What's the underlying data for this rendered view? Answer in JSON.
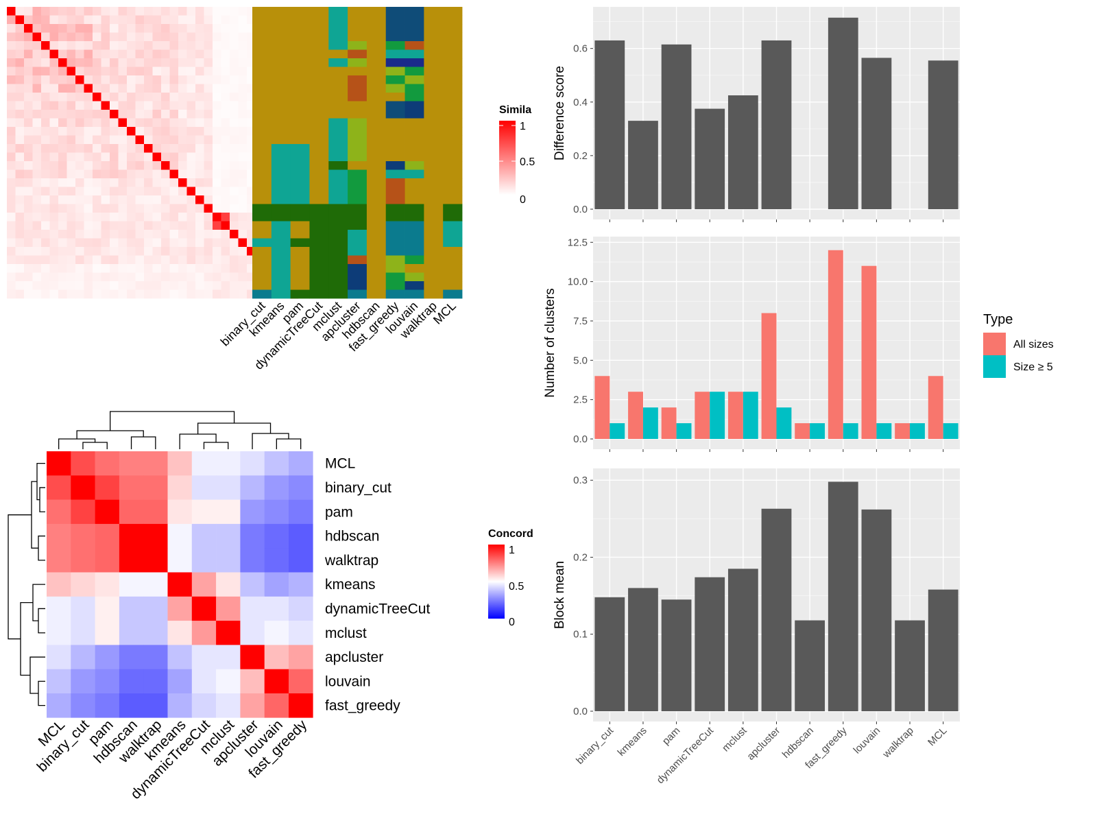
{
  "methods": [
    "binary_cut",
    "kmeans",
    "pam",
    "dynamicTreeCut",
    "mclust",
    "apcluster",
    "hdbscan",
    "fast_greedy",
    "louvain",
    "walktrap",
    "MCL"
  ],
  "ordered_methods": [
    "MCL",
    "binary_cut",
    "pam",
    "hdbscan",
    "walktrap",
    "kmeans",
    "dynamicTreeCut",
    "mclust",
    "apcluster",
    "louvain",
    "fast_greedy"
  ],
  "similarity_legend": {
    "title": "Simila",
    "ticks": [
      "1",
      "0.5",
      "0"
    ]
  },
  "concordance_legend": {
    "title": "Concord",
    "ticks": [
      "1",
      "0.5",
      "0"
    ]
  },
  "type_legend": {
    "title": "Type",
    "items": [
      "All sizes",
      "Size ≥ 5"
    ]
  },
  "colors": {
    "heat_high": "#ff0000",
    "heat_low": "#ffffff",
    "conc_low": "#0000ff",
    "panel_bg": "#ebebeb",
    "bar_gray": "#595959",
    "all_sizes": "#f8766d",
    "size5": "#00bfc4",
    "cluster_palette": [
      "#b8900a",
      "#0fa594",
      "#1f6b07",
      "#0b7b8e",
      "#8eb31a",
      "#b65218",
      "#0d3c78",
      "#129a3e",
      "#1a2a8a",
      "#0f4c78"
    ]
  },
  "chart_data": [
    {
      "type": "bar",
      "title": "",
      "ylabel": "Difference score",
      "categories": [
        "binary_cut",
        "kmeans",
        "pam",
        "dynamicTreeCut",
        "mclust",
        "apcluster",
        "hdbscan",
        "fast_greedy",
        "louvain",
        "walktrap",
        "MCL"
      ],
      "values": [
        0.63,
        0.33,
        0.615,
        0.375,
        0.425,
        0.63,
        0,
        0.715,
        0.565,
        0,
        0.555
      ],
      "ylim": [
        0,
        0.74
      ],
      "yticks": [
        "0.0",
        "0.2",
        "0.4",
        "0.6"
      ]
    },
    {
      "type": "bar",
      "title": "",
      "ylabel": "Number of clusters",
      "categories": [
        "binary_cut",
        "kmeans",
        "pam",
        "dynamicTreeCut",
        "mclust",
        "apcluster",
        "hdbscan",
        "fast_greedy",
        "louvain",
        "walktrap",
        "MCL"
      ],
      "series": [
        {
          "name": "All sizes",
          "values": [
            4,
            3,
            2,
            3,
            3,
            8,
            1,
            12,
            11,
            1,
            4
          ]
        },
        {
          "name": "Size ≥ 5",
          "values": [
            1,
            2,
            1,
            3,
            3,
            2,
            1,
            1,
            1,
            1,
            1
          ]
        }
      ],
      "ylim": [
        0,
        12.6
      ],
      "yticks": [
        "0.0",
        "2.5",
        "5.0",
        "7.5",
        "10.0",
        "12.5"
      ],
      "legend": "right"
    },
    {
      "type": "bar",
      "title": "",
      "ylabel": "Block mean",
      "categories": [
        "binary_cut",
        "kmeans",
        "pam",
        "dynamicTreeCut",
        "mclust",
        "apcluster",
        "hdbscan",
        "fast_greedy",
        "louvain",
        "walktrap",
        "MCL"
      ],
      "values": [
        0.148,
        0.16,
        0.145,
        0.174,
        0.185,
        0.263,
        0.118,
        0.298,
        0.262,
        0.118,
        0.158
      ],
      "ylim": [
        0,
        0.31
      ],
      "yticks": [
        "0.0",
        "0.1",
        "0.2",
        "0.3"
      ]
    },
    {
      "type": "heatmap",
      "title": "",
      "legend_title": "Concord",
      "rows": [
        "MCL",
        "binary_cut",
        "pam",
        "hdbscan",
        "walktrap",
        "kmeans",
        "dynamicTreeCut",
        "mclust",
        "apcluster",
        "louvain",
        "fast_greedy"
      ],
      "columns": [
        "MCL",
        "binary_cut",
        "pam",
        "hdbscan",
        "walktrap",
        "kmeans",
        "dynamicTreeCut",
        "mclust",
        "apcluster",
        "louvain",
        "fast_greedy"
      ],
      "values": [
        [
          1.0,
          0.85,
          0.78,
          0.75,
          0.75,
          0.62,
          0.47,
          0.47,
          0.44,
          0.38,
          0.34
        ],
        [
          0.85,
          1.0,
          0.87,
          0.78,
          0.78,
          0.58,
          0.44,
          0.44,
          0.36,
          0.3,
          0.27
        ],
        [
          0.78,
          0.87,
          1.0,
          0.8,
          0.8,
          0.55,
          0.53,
          0.53,
          0.3,
          0.27,
          0.24
        ],
        [
          0.75,
          0.78,
          0.8,
          1.0,
          1.0,
          0.48,
          0.39,
          0.39,
          0.24,
          0.21,
          0.18
        ],
        [
          0.75,
          0.78,
          0.8,
          1.0,
          1.0,
          0.48,
          0.39,
          0.39,
          0.24,
          0.21,
          0.18
        ],
        [
          0.62,
          0.58,
          0.55,
          0.48,
          0.48,
          1.0,
          0.68,
          0.55,
          0.38,
          0.32,
          0.35
        ],
        [
          0.47,
          0.44,
          0.53,
          0.39,
          0.39,
          0.68,
          1.0,
          0.7,
          0.45,
          0.45,
          0.42
        ],
        [
          0.47,
          0.44,
          0.53,
          0.39,
          0.39,
          0.55,
          0.7,
          1.0,
          0.45,
          0.48,
          0.45
        ],
        [
          0.44,
          0.36,
          0.3,
          0.24,
          0.24,
          0.38,
          0.45,
          0.45,
          1.0,
          0.63,
          0.68
        ],
        [
          0.38,
          0.3,
          0.27,
          0.21,
          0.21,
          0.32,
          0.45,
          0.48,
          0.63,
          1.0,
          0.8
        ],
        [
          0.34,
          0.27,
          0.24,
          0.18,
          0.18,
          0.35,
          0.42,
          0.45,
          0.68,
          0.8,
          1.0
        ]
      ]
    }
  ]
}
